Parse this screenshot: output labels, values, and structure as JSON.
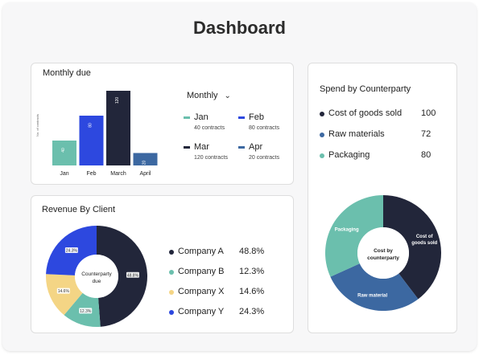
{
  "page": {
    "title": "Dashboard"
  },
  "monthly_due": {
    "title": "Monthly due",
    "y_axis_label": "No. of contracts",
    "dropdown_label": "Monthly",
    "legend": [
      {
        "label": "Jan",
        "sub": "40 contracts",
        "color": "#6bbfad"
      },
      {
        "label": "Feb",
        "sub": "80 contracts",
        "color": "#2d48df"
      },
      {
        "label": "Mar",
        "sub": "120 contracts",
        "color": "#22263a"
      },
      {
        "label": "Apr",
        "sub": "20 contracts",
        "color": "#3c68a1"
      }
    ]
  },
  "revenue_by_client": {
    "title": "Revenue By Client",
    "center_label": "Counterparty due",
    "items": [
      {
        "name": "Company A",
        "pct": "48.8%",
        "color": "#22263a"
      },
      {
        "name": "Company B",
        "pct": "12.3%",
        "color": "#6bbfad"
      },
      {
        "name": "Company X",
        "pct": "14.6%",
        "color": "#f4d585"
      },
      {
        "name": "Company Y",
        "pct": "24.3%",
        "color": "#2d48df"
      }
    ]
  },
  "spend_by_counterparty": {
    "title": "Spend by Counterparty",
    "center_label": "Cost by counterparty",
    "items": [
      {
        "name": "Cost of goods sold",
        "value": "100",
        "slice_label": "Cost of goods sold",
        "color": "#22263a"
      },
      {
        "name": "Raw materials",
        "value": "72",
        "slice_label": "Raw material",
        "color": "#3c68a1"
      },
      {
        "name": "Packaging",
        "value": "80",
        "slice_label": "Packaging",
        "color": "#6bbfad"
      }
    ]
  },
  "chart_data": [
    {
      "type": "bar",
      "title": "Monthly due",
      "categories": [
        "Jan",
        "Feb",
        "March",
        "April"
      ],
      "values": [
        40,
        80,
        120,
        20
      ],
      "ylabel": "No. of contracts",
      "ylim": [
        0,
        120
      ],
      "colors": [
        "#6bbfad",
        "#2d48df",
        "#22263a",
        "#3c68a1"
      ]
    },
    {
      "type": "pie",
      "title": "Revenue By Client",
      "labels": [
        "Company A",
        "Company B",
        "Company X",
        "Company Y"
      ],
      "values": [
        48.8,
        12.3,
        14.6,
        24.3
      ],
      "value_labels": [
        "48.8%",
        "12.3%",
        "14.6%",
        "24.3%"
      ],
      "colors": [
        "#22263a",
        "#6bbfad",
        "#f4d585",
        "#2d48df"
      ]
    },
    {
      "type": "pie",
      "title": "Spend by Counterparty",
      "labels": [
        "Cost of goods sold",
        "Raw materials",
        "Packaging"
      ],
      "values": [
        100,
        72,
        80
      ],
      "colors": [
        "#22263a",
        "#3c68a1",
        "#6bbfad"
      ]
    }
  ]
}
